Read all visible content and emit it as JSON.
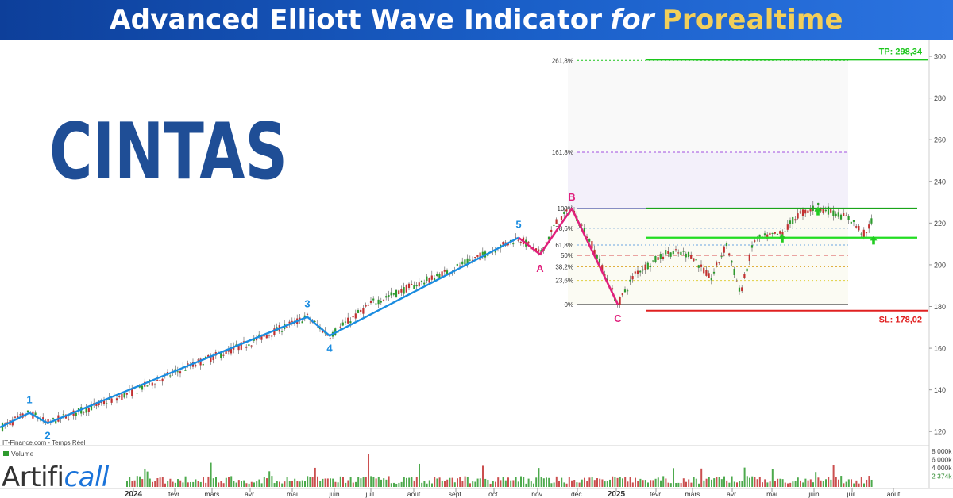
{
  "banner": {
    "title_start": "Advanced Elliott Wave Indicator",
    "title_mid": "for",
    "title_brand": "Prorealtime"
  },
  "logo": {
    "text": "CINTAS",
    "color": "#1f4e96"
  },
  "watermark": {
    "part1": "Artifi",
    "part2": "call"
  },
  "chart_data": {
    "type": "line",
    "source": "IT-Finance.com - Temps Réel",
    "volume_label": "Volume",
    "y_range": [
      114,
      308
    ],
    "y_ticks": [
      120,
      140,
      160,
      180,
      200,
      220,
      240,
      260,
      280,
      300
    ],
    "volume_ticks": [
      "8 000k",
      "6 000k",
      "4 000k",
      "2 374k"
    ],
    "x_labels": [
      "2024",
      "févr.",
      "mars",
      "avr.",
      "mai",
      "juin",
      "juil.",
      "août",
      "sept.",
      "oct.",
      "nov.",
      "déc.",
      "2025",
      "févr.",
      "mars",
      "avr.",
      "mai",
      "juin",
      "juil.",
      "août"
    ],
    "impulse_waves": [
      {
        "label": "",
        "t": 0,
        "y": 122
      },
      {
        "label": "1",
        "t": 37,
        "y": 129
      },
      {
        "label": "2",
        "t": 60,
        "y": 124
      },
      {
        "label": "3",
        "t": 387,
        "y": 175
      },
      {
        "label": "4",
        "t": 415,
        "y": 166
      },
      {
        "label": "5",
        "t": 653,
        "y": 213
      }
    ],
    "correction_waves": [
      {
        "label": "",
        "t": 653,
        "y": 213
      },
      {
        "label": "A",
        "t": 680,
        "y": 205
      },
      {
        "label": "B",
        "t": 720,
        "y": 227
      },
      {
        "label": "C",
        "t": 778,
        "y": 181
      }
    ],
    "fibonacci": [
      {
        "label": "261,8%",
        "y": 298
      },
      {
        "label": "161,8%",
        "y": 254
      },
      {
        "label": "100%",
        "y": 227
      },
      {
        "label": "78,6%",
        "y": 217.5
      },
      {
        "label": "61,8%",
        "y": 209.5
      },
      {
        "label": "50%",
        "y": 204.5
      },
      {
        "label": "38,2%",
        "y": 199
      },
      {
        "label": "23,6%",
        "y": 192.5
      },
      {
        "label": "0%",
        "y": 181
      }
    ],
    "targets": {
      "tp_label": "TP: 298,34",
      "tp": 298.34,
      "sl_label": "SL: 178,02",
      "sl": 178.02,
      "resistance": 227,
      "support": 213
    },
    "colors": {
      "impulse": "#1a8ce0",
      "correction": "#e0207c",
      "tp": "#1cc61c",
      "sl": "#e02020",
      "candle_up": "#2e9b2e",
      "candle_down": "#c23030"
    }
  }
}
